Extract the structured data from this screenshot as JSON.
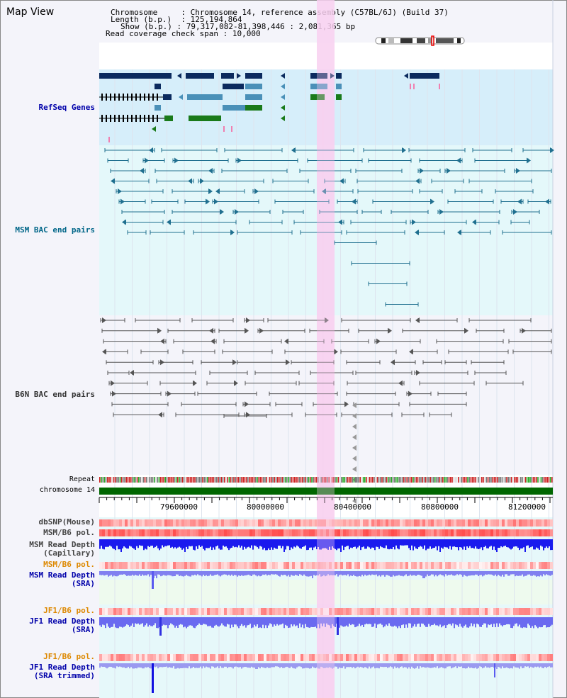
{
  "title": "Map View",
  "info": {
    "chromosome_label": "Chromosome",
    "chromosome_value": "Chromosome 14, reference assembly (C57BL/6J) (Build 37)",
    "length_label": "Length (b.p.)",
    "length_value": "125,194,864",
    "show_label": "Show (b.p.)",
    "show_value": "79,317,082-81,398,446 : 2,081,365 bp",
    "coverage_label": "Read coverage check span",
    "coverage_value": "10,000"
  },
  "tracks": {
    "refseq": "RefSeq Genes",
    "msm_bac": "MSM BAC end pairs",
    "b6n_bac": "B6N BAC end pairs",
    "repeat": "Repeat",
    "chromosome": "chromosome 14",
    "dbsnp": "dbSNP(Mouse)",
    "msm_pol": "MSM/B6 pol.",
    "msm_depth_cap_1": "MSM Read Depth",
    "msm_depth_cap_2": "(Capillary)",
    "msm_pol2": "MSM/B6 pol.",
    "msm_depth_sra_1": "MSM Read Depth",
    "msm_depth_sra_2": "(SRA)",
    "jf1_pol": "JF1/B6 pol.",
    "jf1_depth_1": "JF1 Read Depth",
    "jf1_depth_2": "(SRA)",
    "jf1_pol2": "JF1/B6 pol.",
    "jf1_trim_1": "JF1 Read Depth",
    "jf1_trim_2": "(SRA trimmed)"
  },
  "axis": {
    "ticks": [
      "79600000",
      "80000000",
      "80400000",
      "80800000",
      "81200000"
    ]
  },
  "colors": {
    "refseq_bg": "#d6eefa",
    "msm_bg": "#e4f8fa",
    "highlight": "#f8d0f0",
    "refseq_dark": "#0b2a5e",
    "refseq_mid": "#4a90b8",
    "refseq_green": "#1a7a1a",
    "msm_line": "#1f6f8f",
    "b6n_line": "#555555",
    "chromosome_bar": "#006600",
    "read_depth_blue": "#1a1aee",
    "read_depth_light": "#8080f0",
    "pol_red": "#ee4444"
  }
}
